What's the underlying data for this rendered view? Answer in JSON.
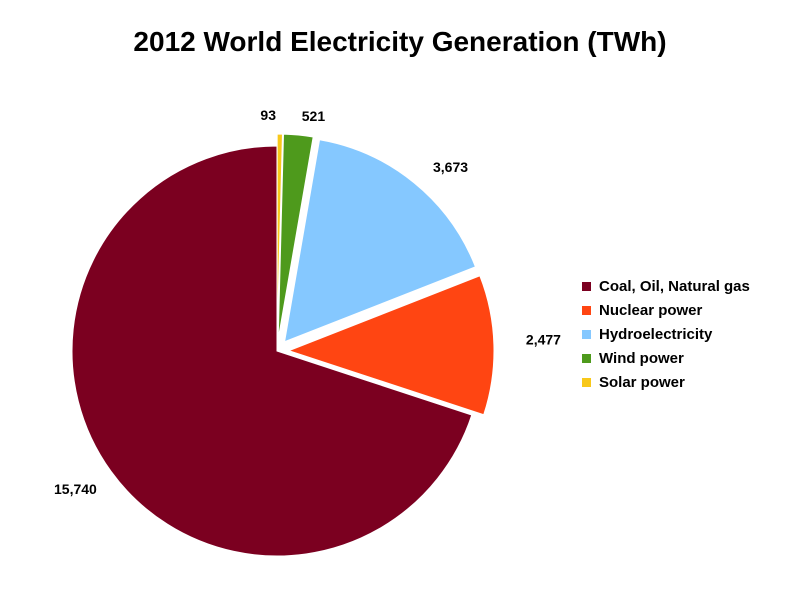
{
  "chart_data": {
    "type": "pie",
    "title": "2012 World Electricity Generation (TWh)",
    "slices": [
      {
        "name": "Coal, Oil, Natural gas",
        "value": 15740,
        "label": "15,740",
        "color": "#7B0020",
        "exploded": false
      },
      {
        "name": "Nuclear power",
        "value": 2477,
        "label": "2,477",
        "color": "#FF4512",
        "exploded": true
      },
      {
        "name": "Hydroelectricity",
        "value": 3673,
        "label": "3,673",
        "color": "#85C8FF",
        "exploded": true
      },
      {
        "name": "Wind power",
        "value": 521,
        "label": "521",
        "color": "#4E9A1C",
        "exploded": true
      },
      {
        "name": "Solar power",
        "value": 93,
        "label": "93",
        "color": "#F8C81A",
        "exploded": true
      }
    ],
    "legend": {
      "position": "right",
      "entries": [
        "Coal, Oil, Natural gas",
        "Nuclear power",
        "Hydroelectricity",
        "Wind power",
        "Solar power"
      ]
    }
  }
}
